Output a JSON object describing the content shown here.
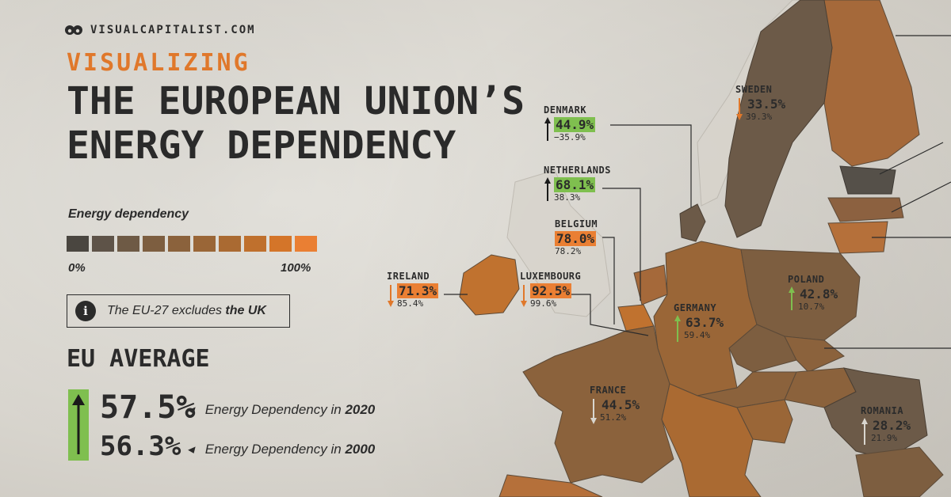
{
  "brand": "VISUALCAPITALIST.COM",
  "kicker": "VISUALIZING",
  "title_line1": "THE EUROPEAN UNION’S",
  "title_line2": "ENERGY DEPENDENCY",
  "legend": {
    "title": "Energy dependency",
    "min_label": "0%",
    "max_label": "100%",
    "colors": [
      "#4a4640",
      "#5e5348",
      "#6e5a45",
      "#7d5e40",
      "#8b623c",
      "#9a6637",
      "#aa6a32",
      "#bf702d",
      "#d47529",
      "#ea7f33"
    ]
  },
  "note": {
    "icon": "info-icon",
    "text_before": "The EU-27 excludes ",
    "text_bold": "the UK"
  },
  "eu_average": {
    "heading": "EU AVERAGE",
    "value_2020": "57.5%",
    "value_2000": "56.3%",
    "label_2020_prefix": "Energy Dependency in ",
    "label_2020_year": "2020",
    "label_2000_prefix": "Energy Dependency in ",
    "label_2000_year": "2000",
    "direction": "up",
    "arrow_color": "#7fbf4f"
  },
  "countries": [
    {
      "name": "SWEDEN",
      "v2020": "33.5%",
      "v2000": "39.3%",
      "direction": "down",
      "highlight": "none"
    },
    {
      "name": "DENMARK",
      "v2020": "44.9%",
      "v2000": "−35.9%",
      "direction": "up",
      "highlight": "green"
    },
    {
      "name": "NETHERLANDS",
      "v2020": "68.1%",
      "v2000": "38.3%",
      "direction": "up",
      "highlight": "green"
    },
    {
      "name": "BELGIUM",
      "v2020": "78.0%",
      "v2000": "78.2%",
      "direction": "none",
      "highlight": "orange"
    },
    {
      "name": "IRELAND",
      "v2020": "71.3%",
      "v2000": "85.4%",
      "direction": "down",
      "highlight": "orange"
    },
    {
      "name": "LUXEMBOURG",
      "v2020": "92.5%",
      "v2000": "99.6%",
      "direction": "down",
      "highlight": "orange"
    },
    {
      "name": "GERMANY",
      "v2020": "63.7%",
      "v2000": "59.4%",
      "direction": "up",
      "highlight": "none"
    },
    {
      "name": "POLAND",
      "v2020": "42.8%",
      "v2000": "10.7%",
      "direction": "up",
      "highlight": "none"
    },
    {
      "name": "FRANCE",
      "v2020": "44.5%",
      "v2000": "51.2%",
      "direction": "down",
      "highlight": "none"
    },
    {
      "name": "ROMANIA",
      "v2020": "28.2%",
      "v2000": "21.9%",
      "direction": "up",
      "highlight": "none"
    }
  ]
}
